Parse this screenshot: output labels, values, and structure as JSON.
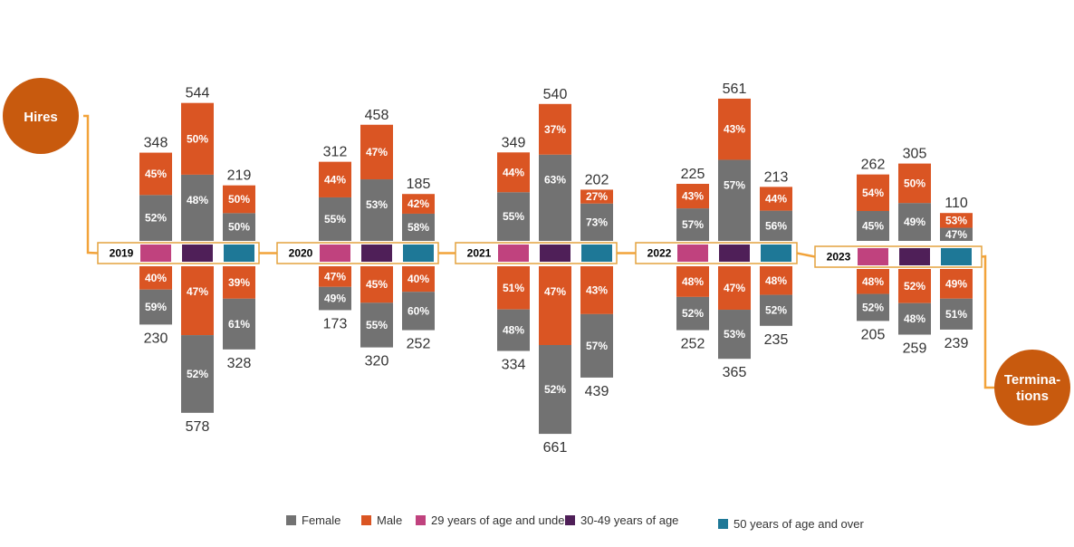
{
  "chart_data": {
    "type": "bar",
    "subtype": "diverging-stacked-bar",
    "hires_label": "Hires",
    "terminations_label": "Termina-tions",
    "terminations_label_lines": [
      "Termina-",
      "tions"
    ],
    "categories": [
      "2019",
      "2020",
      "2021",
      "2022",
      "2023"
    ],
    "group_series": [
      "29 years of age and under",
      "30-49 years of age",
      "50 years of age and over"
    ],
    "stack_series": [
      "Female",
      "Male"
    ],
    "legend": [
      {
        "name": "Female",
        "color": "#727272"
      },
      {
        "name": "Male",
        "color": "#DA5523"
      },
      {
        "name": "29 years of age and under",
        "color": "#C0427E"
      },
      {
        "name": "30-49 years of age",
        "color": "#4F1F58"
      },
      {
        "name": "50 years of age and over",
        "color": "#1E7897"
      }
    ],
    "colors": {
      "female": "#727272",
      "male": "#DA5523",
      "circle": "#C85A0E",
      "connector": "#F2A33A",
      "box_border": "#E4A23E"
    },
    "hires": [
      {
        "year": "2019",
        "groups": [
          {
            "total": 348,
            "female_pct": "52%",
            "male_pct": "45%",
            "female_share": 0.52,
            "male_share": 0.45
          },
          {
            "total": 544,
            "female_pct": "48%",
            "male_pct": "50%",
            "female_share": 0.48,
            "male_share": 0.5
          },
          {
            "total": 219,
            "female_pct": "50%",
            "male_pct": "50%",
            "female_share": 0.5,
            "male_share": 0.5
          }
        ]
      },
      {
        "year": "2020",
        "groups": [
          {
            "total": 312,
            "female_pct": "55%",
            "male_pct": "44%",
            "female_share": 0.55,
            "male_share": 0.44
          },
          {
            "total": 458,
            "female_pct": "53%",
            "male_pct": "47%",
            "female_share": 0.53,
            "male_share": 0.47
          },
          {
            "total": 185,
            "female_pct": "58%",
            "male_pct": "42%",
            "female_share": 0.58,
            "male_share": 0.42
          }
        ]
      },
      {
        "year": "2021",
        "groups": [
          {
            "total": 349,
            "female_pct": "55%",
            "male_pct": "44%",
            "female_share": 0.55,
            "male_share": 0.44
          },
          {
            "total": 540,
            "female_pct": "63%",
            "male_pct": "37%",
            "female_share": 0.63,
            "male_share": 0.37
          },
          {
            "total": 202,
            "female_pct": "73%",
            "male_pct": "27%",
            "female_share": 0.73,
            "male_share": 0.27
          }
        ]
      },
      {
        "year": "2022",
        "groups": [
          {
            "total": 225,
            "female_pct": "57%",
            "male_pct": "43%",
            "female_share": 0.57,
            "male_share": 0.43
          },
          {
            "total": 561,
            "female_pct": "57%",
            "male_pct": "43%",
            "female_share": 0.57,
            "male_share": 0.43
          },
          {
            "total": 213,
            "female_pct": "56%",
            "male_pct": "44%",
            "female_share": 0.56,
            "male_share": 0.44
          }
        ]
      },
      {
        "year": "2023",
        "groups": [
          {
            "total": 262,
            "female_pct": "45%",
            "male_pct": "54%",
            "female_share": 0.45,
            "male_share": 0.54
          },
          {
            "total": 305,
            "female_pct": "49%",
            "male_pct": "50%",
            "female_share": 0.49,
            "male_share": 0.5
          },
          {
            "total": 110,
            "female_pct": "47%",
            "male_pct": "53%",
            "female_share": 0.47,
            "male_share": 0.53
          }
        ]
      }
    ],
    "terminations": [
      {
        "year": "2019",
        "groups": [
          {
            "total": 230,
            "male_pct": "40%",
            "female_pct": "59%",
            "male_share": 0.4,
            "female_share": 0.59
          },
          {
            "total": 578,
            "male_pct": "47%",
            "female_pct": "52%",
            "male_share": 0.47,
            "female_share": 0.52
          },
          {
            "total": 328,
            "male_pct": "39%",
            "female_pct": "61%",
            "male_share": 0.39,
            "female_share": 0.61
          }
        ]
      },
      {
        "year": "2020",
        "groups": [
          {
            "total": 173,
            "male_pct": "47%",
            "female_pct": "49%",
            "male_share": 0.47,
            "female_share": 0.49
          },
          {
            "total": 320,
            "male_pct": "45%",
            "female_pct": "55%",
            "male_share": 0.45,
            "female_share": 0.55
          },
          {
            "total": 252,
            "male_pct": "40%",
            "female_pct": "60%",
            "male_share": 0.4,
            "female_share": 0.6
          }
        ]
      },
      {
        "year": "2021",
        "groups": [
          {
            "total": 334,
            "male_pct": "51%",
            "female_pct": "48%",
            "male_share": 0.51,
            "female_share": 0.48
          },
          {
            "total": 661,
            "male_pct": "47%",
            "female_pct": "52%",
            "male_share": 0.47,
            "female_share": 0.52
          },
          {
            "total": 439,
            "male_pct": "43%",
            "female_pct": "57%",
            "male_share": 0.43,
            "female_share": 0.57
          }
        ]
      },
      {
        "year": "2022",
        "groups": [
          {
            "total": 252,
            "male_pct": "48%",
            "female_pct": "52%",
            "male_share": 0.48,
            "female_share": 0.52
          },
          {
            "total": 365,
            "male_pct": "47%",
            "female_pct": "53%",
            "male_share": 0.47,
            "female_share": 0.53
          },
          {
            "total": 235,
            "male_pct": "48%",
            "female_pct": "52%",
            "male_share": 0.48,
            "female_share": 0.52
          }
        ]
      },
      {
        "year": "2023",
        "groups": [
          {
            "total": 205,
            "male_pct": "48%",
            "female_pct": "52%",
            "male_share": 0.48,
            "female_share": 0.52
          },
          {
            "total": 259,
            "male_pct": "52%",
            "female_pct": "48%",
            "male_share": 0.52,
            "female_share": 0.48
          },
          {
            "total": 239,
            "male_pct": "49%",
            "female_pct": "51%",
            "male_share": 0.49,
            "female_share": 0.51
          }
        ]
      }
    ]
  }
}
